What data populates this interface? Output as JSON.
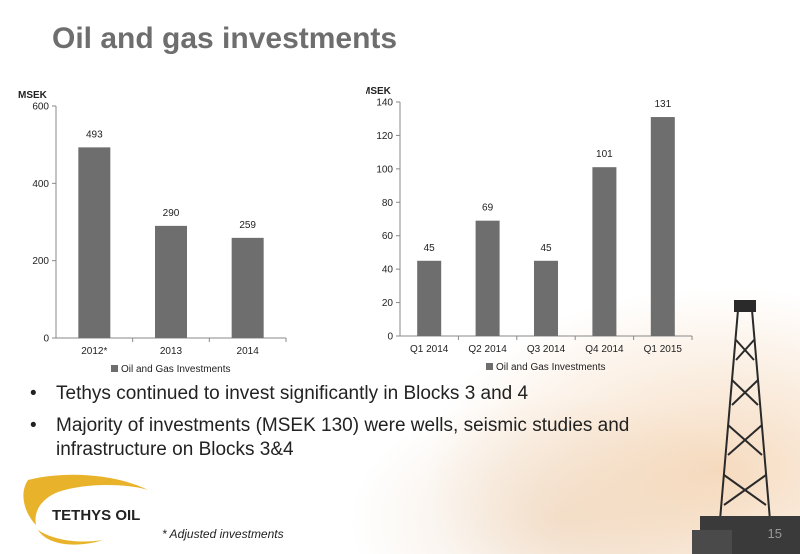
{
  "title": "Oil and gas investments",
  "bullets": [
    "Tethys continued to invest significantly in Blocks 3 and 4",
    "Majority of investments (MSEK 130) were wells, seismic studies and infrastructure on Blocks 3&4"
  ],
  "footnote": "* Adjusted investments",
  "page_number": "15",
  "logo_text": "TETHYS OIL",
  "colors": {
    "bar": "#6e6e6e",
    "title": "#6e6e6e",
    "logo_blue": "#1f4e9e",
    "logo_gold": "#e8b32a"
  },
  "chart_data": [
    {
      "type": "bar",
      "ylabel": "MSEK",
      "categories": [
        "2012*",
        "2013",
        "2014"
      ],
      "series": [
        {
          "name": "Oil and Gas Investments",
          "values": [
            493,
            290,
            259
          ]
        }
      ],
      "ylim": [
        0,
        600
      ],
      "yticks": [
        0,
        200,
        400,
        600
      ],
      "grid": false,
      "legend": "bottom"
    },
    {
      "type": "bar",
      "ylabel": "MSEK",
      "categories": [
        "Q1 2014",
        "Q2 2014",
        "Q3 2014",
        "Q4 2014",
        "Q1 2015"
      ],
      "series": [
        {
          "name": "Oil and Gas Investments",
          "values": [
            45,
            69,
            45,
            101,
            131
          ]
        }
      ],
      "ylim": [
        0,
        140
      ],
      "yticks": [
        0,
        20,
        40,
        60,
        80,
        100,
        120,
        140
      ],
      "grid": false,
      "legend": "bottom"
    }
  ]
}
